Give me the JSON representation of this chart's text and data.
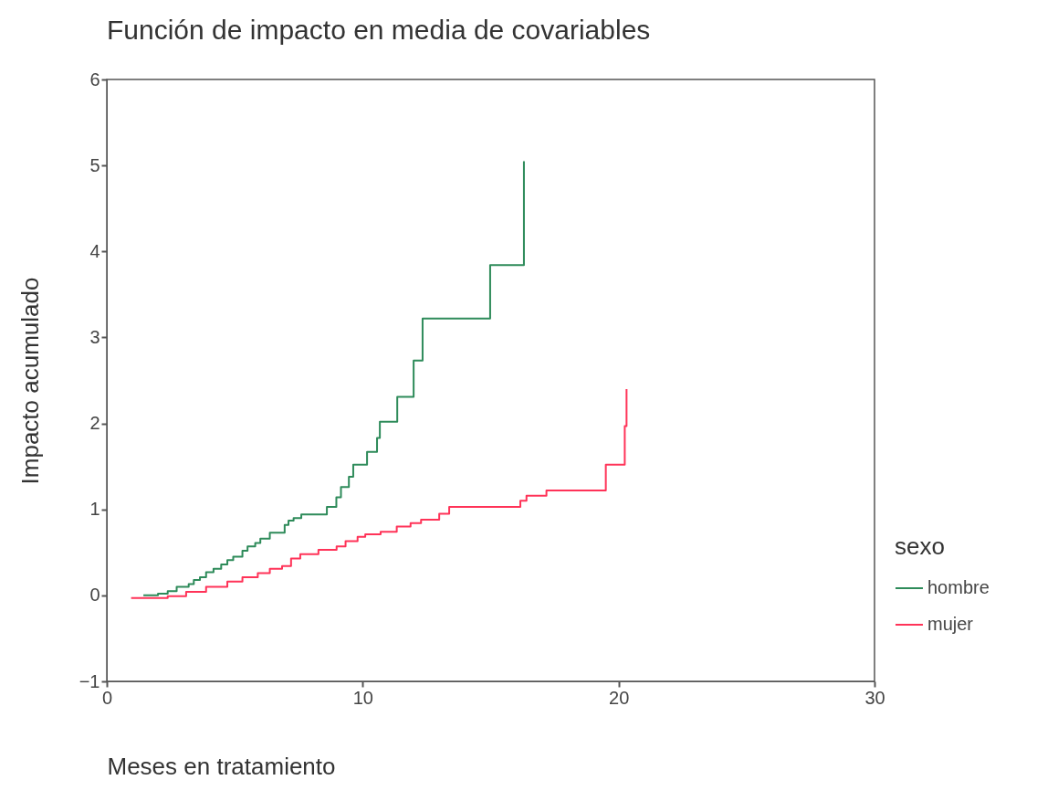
{
  "chart_data": {
    "type": "step",
    "title": "Función de impacto en media de covariables",
    "xlabel": "Meses en tratamiento",
    "ylabel": "Impacto acumulado",
    "legend_title": "sexo",
    "legend": "right",
    "grid": false,
    "marker": "none",
    "line_style": "solid",
    "xlim": [
      0,
      30
    ],
    "xticks": [
      0,
      10,
      20,
      30
    ],
    "ylim": [
      -1,
      6
    ],
    "yticks": [
      -1,
      0,
      1,
      2,
      3,
      4,
      5,
      6
    ],
    "series": [
      {
        "name": "hombre",
        "color": "#2e8b5a",
        "x": [
          1.43,
          2.0,
          2.38,
          2.73,
          3.2,
          3.4,
          3.64,
          3.88,
          4.17,
          4.47,
          4.71,
          4.94,
          5.3,
          5.5,
          5.8,
          6.0,
          6.37,
          6.95,
          7.1,
          7.3,
          7.6,
          8.6,
          8.97,
          9.15,
          9.46,
          9.63,
          10.17,
          10.56,
          10.67,
          11.35,
          11.99,
          12.34,
          14.98,
          16.3
        ],
        "values": [
          0.0,
          0.02,
          0.05,
          0.1,
          0.13,
          0.18,
          0.21,
          0.27,
          0.31,
          0.36,
          0.41,
          0.45,
          0.52,
          0.57,
          0.61,
          0.66,
          0.73,
          0.82,
          0.87,
          0.9,
          0.94,
          1.03,
          1.14,
          1.26,
          1.38,
          1.52,
          1.67,
          1.83,
          2.02,
          2.31,
          2.73,
          3.22,
          3.84,
          5.05
        ]
      },
      {
        "name": "mujer",
        "color": "#ff3358",
        "x": [
          0.95,
          2.38,
          3.1,
          3.88,
          4.71,
          5.3,
          5.9,
          6.37,
          6.85,
          7.2,
          7.56,
          8.27,
          8.98,
          9.33,
          9.8,
          10.1,
          10.7,
          11.33,
          11.87,
          12.28,
          12.99,
          13.38,
          16.16,
          16.4,
          17.18,
          19.5,
          20.24,
          20.31
        ],
        "values": [
          -0.03,
          -0.01,
          0.04,
          0.1,
          0.16,
          0.21,
          0.26,
          0.31,
          0.34,
          0.43,
          0.48,
          0.53,
          0.57,
          0.63,
          0.68,
          0.71,
          0.74,
          0.8,
          0.84,
          0.88,
          0.95,
          1.03,
          1.1,
          1.16,
          1.22,
          1.52,
          1.97,
          2.4
        ]
      }
    ]
  }
}
